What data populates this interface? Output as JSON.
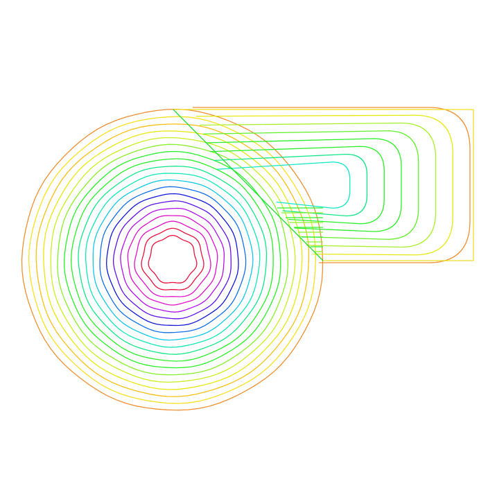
{
  "figure": {
    "type": "contour-plot",
    "description_visible": "",
    "level_colors": [
      "#e8103c",
      "#e010c8",
      "#b010e8",
      "#6010e8",
      "#1018d8",
      "#1070e8",
      "#10c8e8",
      "#10e8b8",
      "#10e888",
      "#28f028",
      "#88f028",
      "#c8f020",
      "#e8e810",
      "#f8c010",
      "#f09030"
    ],
    "circle_level_count": 19,
    "channel_level_count": 8
  }
}
